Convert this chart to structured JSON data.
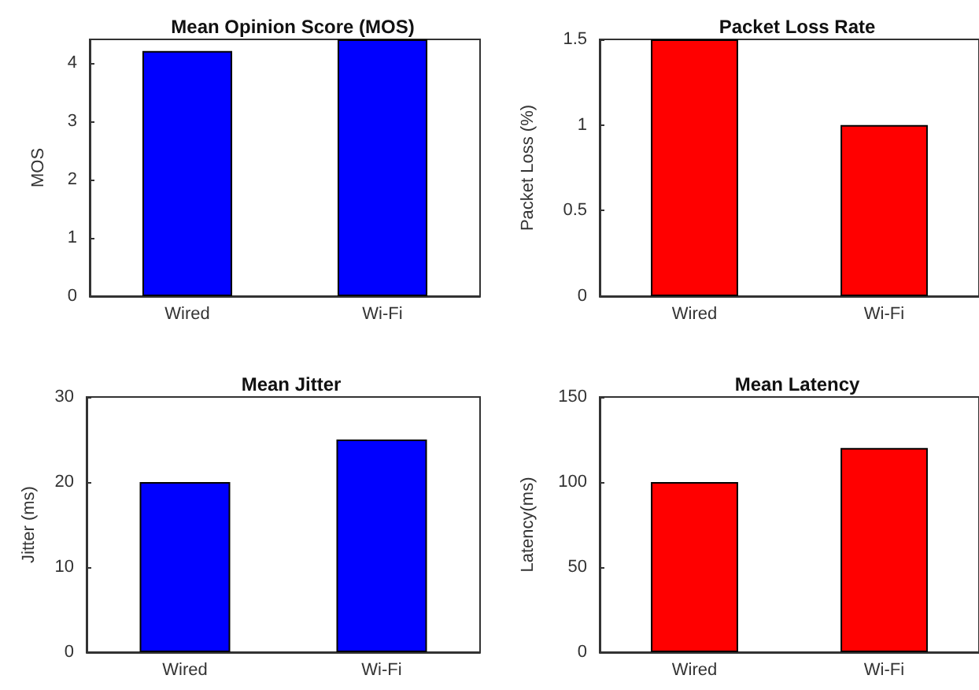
{
  "chart_data": [
    {
      "type": "bar",
      "title": "Mean Opinion Score (MOS)",
      "ylabel": "MOS",
      "categories": [
        "Wired",
        "Wi-Fi"
      ],
      "values": [
        4.2,
        4.4
      ],
      "color": "#0000ff",
      "ylim": [
        0,
        4.4
      ],
      "yticks": [
        0,
        1,
        2,
        3,
        4
      ]
    },
    {
      "type": "bar",
      "title": "Packet Loss Rate",
      "ylabel": "Packet Loss (%)",
      "categories": [
        "Wired",
        "Wi-Fi"
      ],
      "values": [
        1.5,
        1.0
      ],
      "color": "#ff0000",
      "ylim": [
        0,
        1.5
      ],
      "yticks": [
        0,
        0.5,
        1,
        1.5
      ]
    },
    {
      "type": "bar",
      "title": "Mean Jitter",
      "ylabel": "Jitter (ms)",
      "categories": [
        "Wired",
        "Wi-Fi"
      ],
      "values": [
        20,
        25
      ],
      "color": "#0000ff",
      "ylim": [
        0,
        30
      ],
      "yticks": [
        0,
        10,
        20,
        30
      ]
    },
    {
      "type": "bar",
      "title": "Mean Latency",
      "ylabel": "Latency(ms)",
      "categories": [
        "Wired",
        "Wi-Fi"
      ],
      "values": [
        100,
        120
      ],
      "color": "#ff0000",
      "ylim": [
        0,
        150
      ],
      "yticks": [
        0,
        50,
        100,
        150
      ]
    }
  ]
}
